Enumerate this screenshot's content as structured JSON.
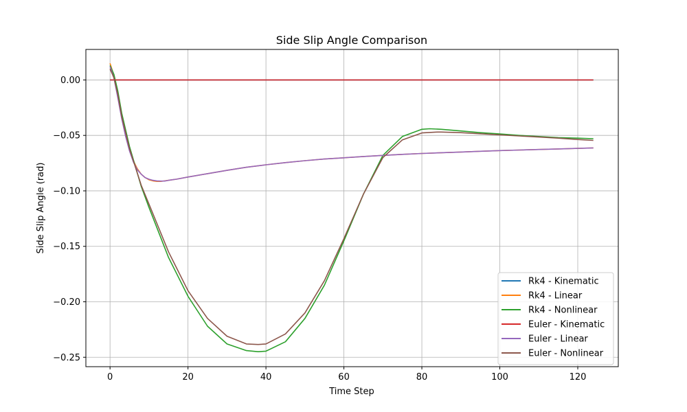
{
  "chart_data": {
    "type": "line",
    "title": "Side Slip Angle Comparison",
    "xlabel": "Time Step",
    "ylabel": "Side Slip Angle (rad)",
    "xlim": [
      -6.2,
      130.4
    ],
    "ylim": [
      -0.2585,
      0.0275
    ],
    "xticks": [
      0,
      20,
      40,
      60,
      80,
      100,
      120
    ],
    "xtick_labels": [
      "0",
      "20",
      "40",
      "60",
      "80",
      "100",
      "120"
    ],
    "yticks": [
      0.0,
      -0.05,
      -0.1,
      -0.15,
      -0.2,
      -0.25
    ],
    "ytick_labels": [
      "0.00",
      "−0.05",
      "−0.10",
      "−0.15",
      "−0.20",
      "−0.25"
    ],
    "grid": true,
    "legend_position": "lower-right",
    "series": [
      {
        "name": "Rk4 - Kinematic",
        "color": "#1f77b4",
        "x": [
          0,
          124
        ],
        "y": [
          0.0,
          0.0
        ]
      },
      {
        "name": "Rk4 - Linear",
        "color": "#ff7f0e",
        "x": [
          0,
          1,
          2,
          3,
          4,
          5,
          6,
          7,
          8,
          9,
          10,
          11,
          12,
          13,
          14,
          15,
          17,
          20,
          25,
          30,
          35,
          40,
          45,
          50,
          55,
          60,
          65,
          70,
          75,
          80,
          85,
          90,
          95,
          100,
          105,
          110,
          115,
          120,
          124
        ],
        "y": [
          0.015,
          0.004,
          -0.015,
          -0.034,
          -0.05,
          -0.063,
          -0.073,
          -0.08,
          -0.085,
          -0.088,
          -0.09,
          -0.091,
          -0.0915,
          -0.0915,
          -0.091,
          -0.0905,
          -0.0895,
          -0.0875,
          -0.0845,
          -0.0815,
          -0.0787,
          -0.0765,
          -0.0745,
          -0.0728,
          -0.0713,
          -0.0702,
          -0.069,
          -0.068,
          -0.0671,
          -0.0663,
          -0.0656,
          -0.065,
          -0.0643,
          -0.0637,
          -0.0632,
          -0.0627,
          -0.0622,
          -0.0617,
          -0.0613
        ]
      },
      {
        "name": "Rk4 - Nonlinear",
        "color": "#2ca02c",
        "x": [
          0,
          1,
          2,
          3,
          5,
          8,
          10,
          15,
          20,
          25,
          30,
          35,
          38,
          40,
          45,
          50,
          55,
          60,
          65,
          70,
          75,
          80,
          82,
          85,
          90,
          95,
          100,
          105,
          110,
          115,
          120,
          124
        ],
        "y": [
          0.013,
          0.005,
          -0.01,
          -0.03,
          -0.06,
          -0.096,
          -0.115,
          -0.16,
          -0.195,
          -0.222,
          -0.238,
          -0.244,
          -0.245,
          -0.2445,
          -0.236,
          -0.215,
          -0.185,
          -0.145,
          -0.103,
          -0.068,
          -0.051,
          -0.0445,
          -0.044,
          -0.0445,
          -0.046,
          -0.0475,
          -0.0487,
          -0.05,
          -0.051,
          -0.052,
          -0.0525,
          -0.053
        ]
      },
      {
        "name": "Euler - Kinematic",
        "color": "#d62728",
        "x": [
          0,
          124
        ],
        "y": [
          0.0,
          0.0
        ]
      },
      {
        "name": "Euler - Linear",
        "color": "#9467bd",
        "x": [
          0,
          1,
          2,
          3,
          4,
          5,
          6,
          7,
          8,
          9,
          10,
          11,
          12,
          13,
          14,
          15,
          17,
          20,
          25,
          30,
          35,
          40,
          45,
          50,
          55,
          60,
          65,
          70,
          75,
          80,
          85,
          90,
          95,
          100,
          105,
          110,
          115,
          120,
          124
        ],
        "y": [
          0.012,
          0.002,
          -0.016,
          -0.035,
          -0.051,
          -0.064,
          -0.074,
          -0.081,
          -0.085,
          -0.088,
          -0.0895,
          -0.0905,
          -0.091,
          -0.0912,
          -0.0912,
          -0.0905,
          -0.0895,
          -0.0875,
          -0.0845,
          -0.0815,
          -0.0787,
          -0.0765,
          -0.0745,
          -0.0728,
          -0.0713,
          -0.0702,
          -0.069,
          -0.068,
          -0.0671,
          -0.0663,
          -0.0656,
          -0.065,
          -0.0643,
          -0.0637,
          -0.0632,
          -0.0627,
          -0.0622,
          -0.0617,
          -0.0613
        ]
      },
      {
        "name": "Euler - Nonlinear",
        "color": "#8c564b",
        "x": [
          0,
          1,
          2,
          3,
          5,
          8,
          10,
          15,
          20,
          25,
          30,
          35,
          38,
          40,
          45,
          50,
          55,
          60,
          65,
          70,
          75,
          80,
          84,
          85,
          90,
          95,
          100,
          105,
          110,
          115,
          120,
          124
        ],
        "y": [
          0.01,
          0.002,
          -0.013,
          -0.033,
          -0.062,
          -0.095,
          -0.112,
          -0.155,
          -0.19,
          -0.215,
          -0.231,
          -0.238,
          -0.2385,
          -0.238,
          -0.229,
          -0.21,
          -0.181,
          -0.143,
          -0.103,
          -0.07,
          -0.054,
          -0.0478,
          -0.047,
          -0.047,
          -0.0475,
          -0.0485,
          -0.0495,
          -0.0505,
          -0.0515,
          -0.0525,
          -0.0537,
          -0.0545
        ]
      }
    ]
  }
}
